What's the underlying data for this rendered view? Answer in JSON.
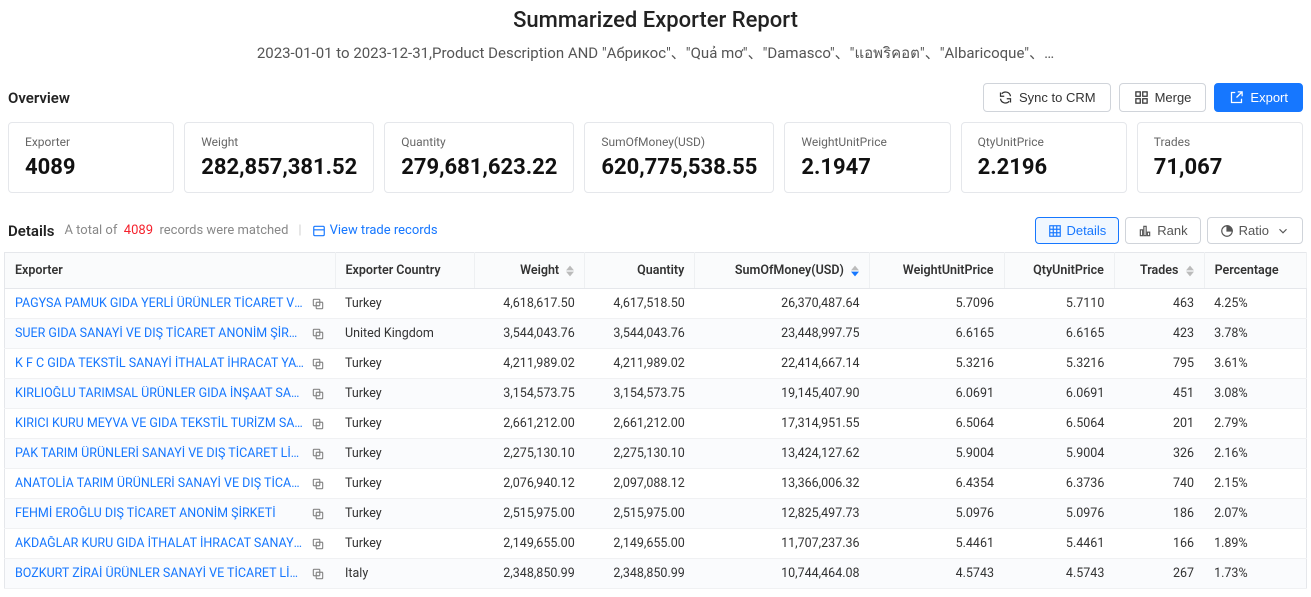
{
  "header": {
    "title": "Summarized Exporter Report",
    "subtitle": "2023-01-01 to 2023-12-31,Product Description AND \"Абрикос\"、\"Quả mơ\"、\"Damasco\"、\"แอพริคอต\"、\"Albaricoque\"、…"
  },
  "overview": {
    "label": "Overview",
    "buttons": {
      "sync": "Sync to CRM",
      "merge": "Merge",
      "export": "Export"
    },
    "stats": [
      {
        "label": "Exporter",
        "value": "4089"
      },
      {
        "label": "Weight",
        "value": "282,857,381.52"
      },
      {
        "label": "Quantity",
        "value": "279,681,623.22"
      },
      {
        "label": "SumOfMoney(USD)",
        "value": "620,775,538.55"
      },
      {
        "label": "WeightUnitPrice",
        "value": "2.1947"
      },
      {
        "label": "QtyUnitPrice",
        "value": "2.2196"
      },
      {
        "label": "Trades",
        "value": "71,067"
      }
    ]
  },
  "details": {
    "label": "Details",
    "total_prefix": "A total of",
    "count": "4089",
    "total_suffix": "records were matched",
    "view_records": "View trade records",
    "tabs": {
      "details": "Details",
      "rank": "Rank",
      "ratio": "Ratio"
    }
  },
  "table": {
    "columns": {
      "exporter": "Exporter",
      "country": "Exporter Country",
      "weight": "Weight",
      "quantity": "Quantity",
      "sum": "SumOfMoney(USD)",
      "wup": "WeightUnitPrice",
      "qup": "QtyUnitPrice",
      "trades": "Trades",
      "pct": "Percentage"
    },
    "rows": [
      {
        "exporter": "PAGYSA PAMUK GIDA YERLİ ÜRÜNLER TİCARET VE SANA...",
        "country": "Turkey",
        "weight": "4,618,617.50",
        "quantity": "4,617,518.50",
        "sum": "26,370,487.64",
        "wup": "5.7096",
        "qup": "5.7110",
        "trades": "463",
        "pct": "4.25%"
      },
      {
        "exporter": "SUER GIDA SANAYİ VE DIŞ TİCARET ANONİM ŞİRKETİ",
        "country": "United Kingdom",
        "weight": "3,544,043.76",
        "quantity": "3,544,043.76",
        "sum": "23,448,997.75",
        "wup": "6.6165",
        "qup": "6.6165",
        "trades": "423",
        "pct": "3.78%"
      },
      {
        "exporter": "K F C GIDA TEKSTİL SANAYİ İTHALAT İHRACAT YATIRIM ...",
        "country": "Turkey",
        "weight": "4,211,989.02",
        "quantity": "4,211,989.02",
        "sum": "22,414,667.14",
        "wup": "5.3216",
        "qup": "5.3216",
        "trades": "795",
        "pct": "3.61%"
      },
      {
        "exporter": "KIRLIOĞLU TARIMSAL ÜRÜNLER GIDA İNŞAAT SANAYİ Tİ...",
        "country": "Turkey",
        "weight": "3,154,573.75",
        "quantity": "3,154,573.75",
        "sum": "19,145,407.90",
        "wup": "6.0691",
        "qup": "6.0691",
        "trades": "451",
        "pct": "3.08%"
      },
      {
        "exporter": "KIRICI KURU MEYVA VE GIDA TEKSTİL TURİZM SANAYİ V...",
        "country": "Turkey",
        "weight": "2,661,212.00",
        "quantity": "2,661,212.00",
        "sum": "17,314,951.55",
        "wup": "6.5064",
        "qup": "6.5064",
        "trades": "201",
        "pct": "2.79%"
      },
      {
        "exporter": "PAK TARIM ÜRÜNLERİ SANAYİ VE DIŞ TİCARET LİMİTED ...",
        "country": "Turkey",
        "weight": "2,275,130.10",
        "quantity": "2,275,130.10",
        "sum": "13,424,127.62",
        "wup": "5.9004",
        "qup": "5.9004",
        "trades": "326",
        "pct": "2.16%"
      },
      {
        "exporter": "ANATOLİA TARIM ÜRÜNLERİ SANAYİ VE DIŞ TİCARET AN...",
        "country": "Turkey",
        "weight": "2,076,940.12",
        "quantity": "2,097,088.12",
        "sum": "13,366,006.32",
        "wup": "6.4354",
        "qup": "6.3736",
        "trades": "740",
        "pct": "2.15%"
      },
      {
        "exporter": "FEHMİ EROĞLU DIŞ TİCARET ANONİM ŞİRKETİ",
        "country": "Turkey",
        "weight": "2,515,975.00",
        "quantity": "2,515,975.00",
        "sum": "12,825,497.73",
        "wup": "5.0976",
        "qup": "5.0976",
        "trades": "186",
        "pct": "2.07%"
      },
      {
        "exporter": "AKDAĞLAR KURU GIDA İTHALAT İHRACAT SANAYİ TİCAR...",
        "country": "Turkey",
        "weight": "2,149,655.00",
        "quantity": "2,149,655.00",
        "sum": "11,707,237.36",
        "wup": "5.4461",
        "qup": "5.4461",
        "trades": "166",
        "pct": "1.89%"
      },
      {
        "exporter": "BOZKURT ZİRAİ ÜRÜNLER SANAYİ VE TİCARET LİMİTED ...",
        "country": "Italy",
        "weight": "2,348,850.99",
        "quantity": "2,348,850.99",
        "sum": "10,744,464.08",
        "wup": "4.5743",
        "qup": "4.5743",
        "trades": "267",
        "pct": "1.73%"
      }
    ]
  },
  "colors": {
    "primary": "#1677ff",
    "danger": "#f5222d",
    "border": "#e5e7eb",
    "text": "#333333",
    "muted": "#888888"
  }
}
